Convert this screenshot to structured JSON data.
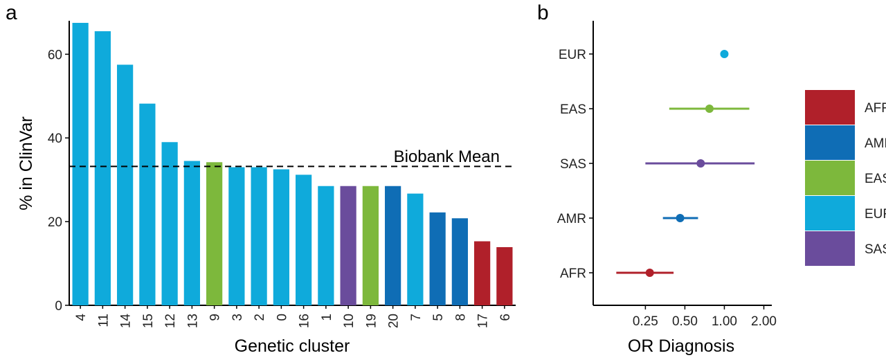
{
  "panel_a": {
    "letter": "a"
  },
  "panel_b": {
    "letter": "b"
  },
  "colors": {
    "AFR": "#B0202A",
    "AMR": "#0F6DB5",
    "EAS": "#7DB83C",
    "EUR": "#0FAADB",
    "SAS": "#6A4C9C"
  },
  "legend": [
    "AFR",
    "AMR",
    "EAS",
    "EUR",
    "SAS"
  ],
  "chart_data": [
    {
      "type": "bar",
      "categories": [
        "4",
        "11",
        "14",
        "15",
        "12",
        "13",
        "9",
        "3",
        "2",
        "0",
        "16",
        "1",
        "10",
        "19",
        "20",
        "7",
        "5",
        "8",
        "17",
        "6"
      ],
      "values": [
        67.5,
        65.5,
        57.5,
        48.2,
        39.0,
        34.5,
        34.2,
        33.0,
        33.0,
        32.5,
        31.2,
        28.5,
        28.5,
        28.5,
        28.5,
        26.7,
        22.2,
        20.8,
        15.3,
        13.9
      ],
      "groups": [
        "EUR",
        "EUR",
        "EUR",
        "EUR",
        "EUR",
        "EUR",
        "EAS",
        "EUR",
        "EUR",
        "EUR",
        "EUR",
        "EUR",
        "SAS",
        "EAS",
        "AMR",
        "EUR",
        "AMR",
        "AMR",
        "AFR",
        "AFR"
      ],
      "xlabel": "Genetic cluster",
      "ylabel": "% in ClinVar",
      "ylim": [
        0,
        68
      ],
      "yticks": [
        0,
        20,
        40,
        60
      ],
      "reference_line": {
        "value": 33.2,
        "label": "Biobank Mean",
        "style": "dashed"
      },
      "grid": false
    },
    {
      "type": "scatter",
      "categories": [
        "EUR",
        "EAS",
        "SAS",
        "AMR",
        "AFR"
      ],
      "points": [
        {
          "group": "EUR",
          "estimate": 1.0,
          "low": 1.0,
          "high": 1.0
        },
        {
          "group": "EAS",
          "estimate": 0.77,
          "low": 0.38,
          "high": 1.55
        },
        {
          "group": "SAS",
          "estimate": 0.66,
          "low": 0.25,
          "high": 1.7
        },
        {
          "group": "AMR",
          "estimate": 0.46,
          "low": 0.34,
          "high": 0.63
        },
        {
          "group": "AFR",
          "estimate": 0.27,
          "low": 0.15,
          "high": 0.41
        }
      ],
      "xlabel": "OR Diagnosis",
      "xscale": "log",
      "xticks": [
        0.25,
        0.5,
        1.0,
        2.0
      ],
      "xtick_labels": [
        "0.25",
        "0.50",
        "1.00",
        "2.00"
      ],
      "xlim": [
        0.1,
        2.3
      ],
      "legend_position": "right",
      "grid": false
    }
  ]
}
